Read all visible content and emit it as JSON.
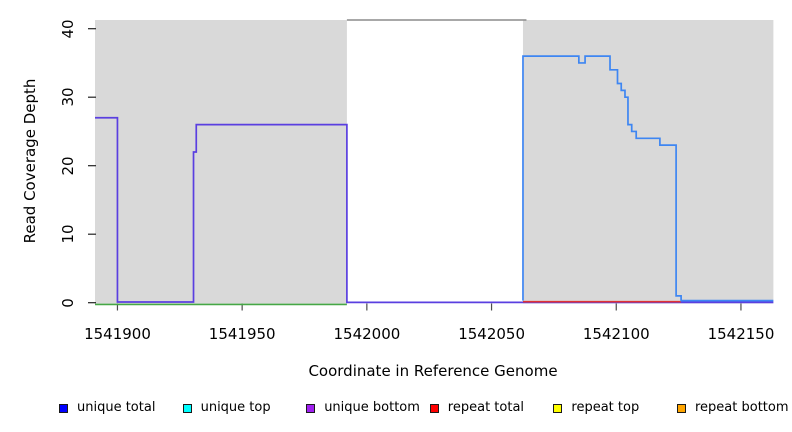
{
  "chart_data": {
    "type": "line",
    "subtype": "step-coverage",
    "title": "",
    "xlabel": "Coordinate in Reference Genome",
    "ylabel": "Read Coverage Depth",
    "xlim": [
      1541891,
      1542163
    ],
    "ylim": [
      0,
      41.3
    ],
    "x_ticks": [
      1541900,
      1541950,
      1542000,
      1542050,
      1542100,
      1542150
    ],
    "y_ticks": [
      0,
      10,
      20,
      30,
      40
    ],
    "grid": false,
    "background_shading": {
      "color": "#d9d9d9",
      "regions": [
        [
          1541891,
          1541992
        ],
        [
          1542062.6,
          1542163
        ]
      ]
    },
    "gap_top_border": {
      "region": [
        1541992,
        1542064
      ],
      "color": "#8c8c8c"
    },
    "series": [
      {
        "name": "baseline-green-unique-top-bottom-overlap",
        "color": "#46a746",
        "points": [
          [
            1541891,
            -0.25
          ],
          [
            1541992,
            -0.25
          ]
        ]
      },
      {
        "name": "unique-coverage-left-total-bottom-overlap",
        "color": "#5a3fe0",
        "points": [
          [
            1541891,
            27
          ],
          [
            1541900,
            27
          ],
          [
            1541900,
            0.1
          ],
          [
            1541930.5,
            0.1
          ],
          [
            1541930.5,
            22
          ],
          [
            1541931.6,
            22
          ],
          [
            1541931.6,
            26
          ],
          [
            1541992,
            26
          ],
          [
            1541992,
            0.05
          ],
          [
            1542163,
            0.05
          ]
        ]
      },
      {
        "name": "repeat-total-baseline",
        "color": "#e03232",
        "points": [
          [
            1542062.6,
            0.15
          ],
          [
            1542126,
            0.15
          ]
        ]
      },
      {
        "name": "unique-coverage-right-total-top-overlap",
        "color": "#3e86f2",
        "points": [
          [
            1542062.6,
            0.3
          ],
          [
            1542062.6,
            36
          ],
          [
            1542085,
            36
          ],
          [
            1542085,
            35
          ],
          [
            1542087.5,
            35
          ],
          [
            1542087.5,
            36
          ],
          [
            1542097.5,
            36
          ],
          [
            1542097.5,
            34
          ],
          [
            1542100.5,
            34
          ],
          [
            1542100.5,
            32
          ],
          [
            1542102,
            32
          ],
          [
            1542102,
            31
          ],
          [
            1542103.5,
            31
          ],
          [
            1542103.5,
            30
          ],
          [
            1542104.7,
            30
          ],
          [
            1542104.7,
            26
          ],
          [
            1542106.2,
            26
          ],
          [
            1542106.2,
            25
          ],
          [
            1542108,
            25
          ],
          [
            1542108,
            24
          ],
          [
            1542117.5,
            24
          ],
          [
            1542117.5,
            23
          ],
          [
            1542124,
            23
          ],
          [
            1542124,
            1
          ],
          [
            1542126,
            1
          ],
          [
            1542126,
            0.3
          ],
          [
            1542163,
            0.3
          ]
        ]
      }
    ],
    "legend": {
      "position": "bottom",
      "entries": [
        {
          "label": "unique total",
          "color": "#0000ff"
        },
        {
          "label": "unique top",
          "color": "#00ffff"
        },
        {
          "label": "unique bottom",
          "color": "#a020f0"
        },
        {
          "label": "repeat total",
          "color": "#ff0000"
        },
        {
          "label": "repeat top",
          "color": "#ffff00"
        },
        {
          "label": "repeat bottom",
          "color": "#ffa500"
        }
      ]
    }
  }
}
